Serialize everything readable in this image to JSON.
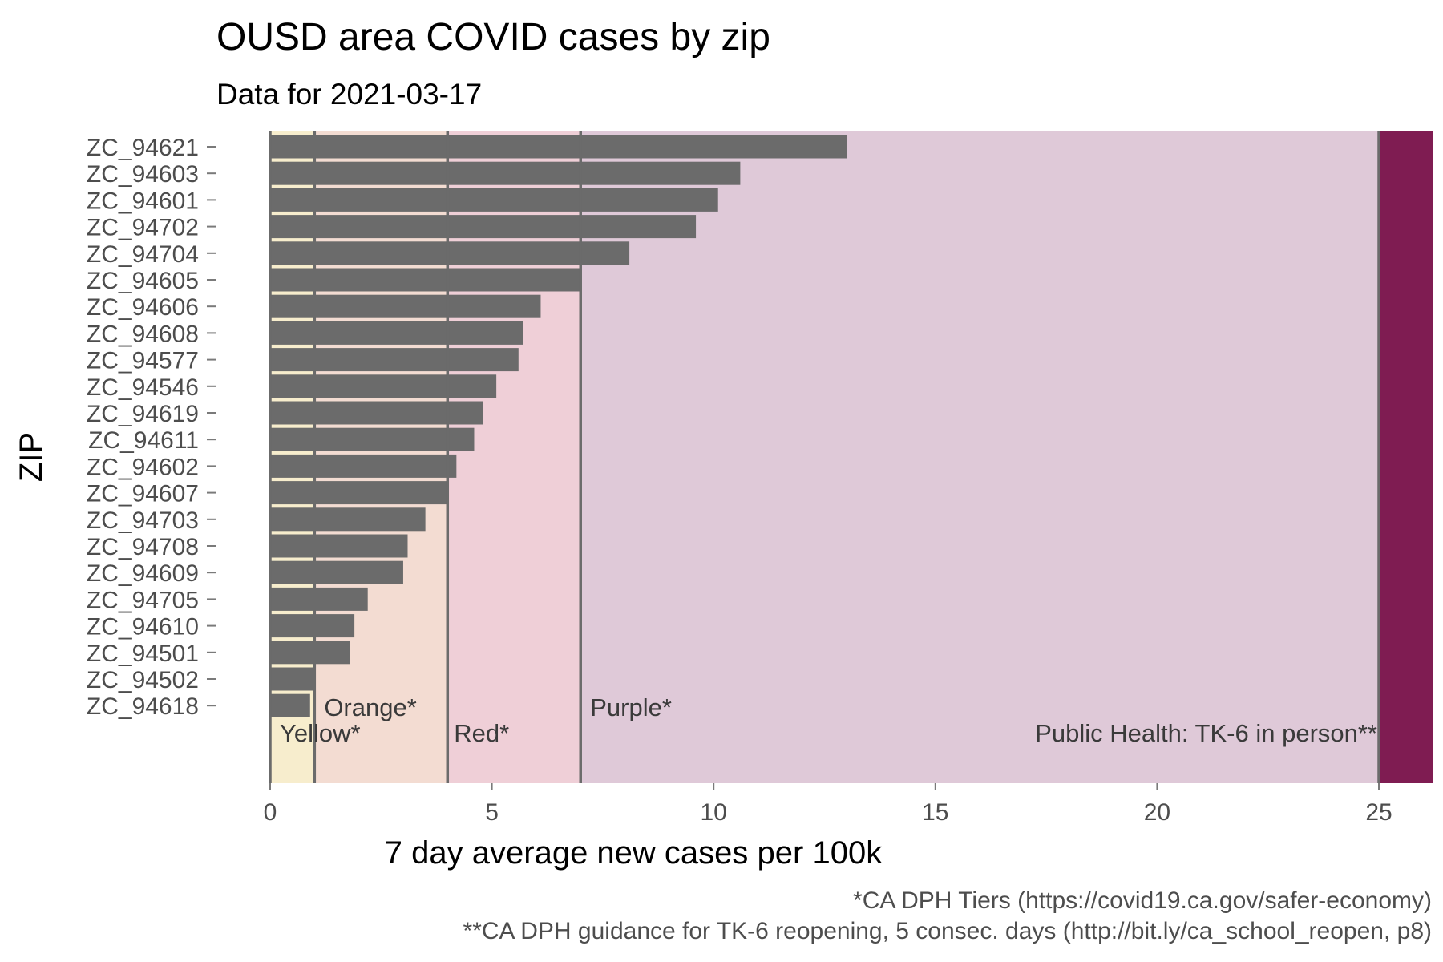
{
  "chart_data": {
    "type": "bar",
    "orientation": "horizontal",
    "title": "OUSD area COVID cases by zip",
    "subtitle": "Data for 2021-03-17",
    "xlabel": "7 day average new cases per 100k",
    "ylabel": "ZIP",
    "xlim": [
      0,
      26.3
    ],
    "xticks": [
      0,
      5,
      10,
      15,
      20,
      25
    ],
    "categories": [
      "ZC_94621",
      "ZC_94603",
      "ZC_94601",
      "ZC_94702",
      "ZC_94704",
      "ZC_94605",
      "ZC_94606",
      "ZC_94608",
      "ZC_94577",
      "ZC_94546",
      "ZC_94619",
      "ZC_94611",
      "ZC_94602",
      "ZC_94607",
      "ZC_94703",
      "ZC_94708",
      "ZC_94609",
      "ZC_94705",
      "ZC_94610",
      "ZC_94501",
      "ZC_94502",
      "ZC_94618"
    ],
    "values": [
      13.0,
      10.6,
      10.1,
      9.6,
      8.1,
      7.0,
      6.1,
      5.7,
      5.6,
      5.1,
      4.8,
      4.6,
      4.2,
      4.0,
      3.5,
      3.1,
      3.0,
      2.2,
      1.9,
      1.8,
      1.0,
      0.9
    ],
    "bar_color": "#6b6b6b",
    "grid": false,
    "legend": "none",
    "bands": [
      {
        "label": "Yellow*",
        "from": 0,
        "to": 1,
        "color": "#f7edcd"
      },
      {
        "label": "Orange*",
        "from": 1,
        "to": 4,
        "color": "#f3dcd2"
      },
      {
        "label": "Red*",
        "from": 4,
        "to": 7,
        "color": "#efcfd7"
      },
      {
        "label": "Purple*",
        "from": 7,
        "to": 25,
        "color": "#dfc9d8"
      },
      {
        "label": "Public Health: TK-6 in person**",
        "from": 25,
        "to": 26.3,
        "color": "#7f1c52"
      }
    ],
    "caption_lines": [
      "*CA DPH Tiers (https://covid19.ca.gov/safer-economy)",
      "**CA DPH guidance for TK-6 reopening, 5 consec. days (http://bit.ly/ca_school_reopen, p8)"
    ]
  }
}
